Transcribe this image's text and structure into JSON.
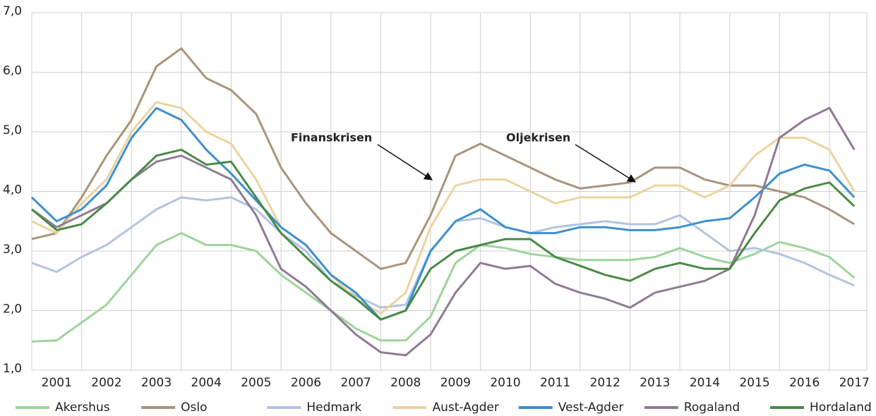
{
  "chart_data": {
    "type": "line",
    "x": [
      2001,
      2001.5,
      2002,
      2002.5,
      2003,
      2003.5,
      2004,
      2004.5,
      2005,
      2005.5,
      2006,
      2006.5,
      2007,
      2007.5,
      2008,
      2008.5,
      2009,
      2009.5,
      2010,
      2010.5,
      2011,
      2011.5,
      2012,
      2012.5,
      2013,
      2013.5,
      2014,
      2014.5,
      2015,
      2015.5,
      2016,
      2016.5,
      2017,
      2017.5
    ],
    "xlim": [
      2001,
      2017.75
    ],
    "xticks": [
      {
        "value": 2001.5,
        "label": "2001"
      },
      {
        "value": 2002.5,
        "label": "2002"
      },
      {
        "value": 2003.5,
        "label": "2003"
      },
      {
        "value": 2004.5,
        "label": "2004"
      },
      {
        "value": 2005.5,
        "label": "2005"
      },
      {
        "value": 2006.5,
        "label": "2006"
      },
      {
        "value": 2007.5,
        "label": "2007"
      },
      {
        "value": 2008.5,
        "label": "2008"
      },
      {
        "value": 2009.5,
        "label": "2009"
      },
      {
        "value": 2010.5,
        "label": "2010"
      },
      {
        "value": 2011.5,
        "label": "2011"
      },
      {
        "value": 2012.5,
        "label": "2012"
      },
      {
        "value": 2013.5,
        "label": "2013"
      },
      {
        "value": 2014.5,
        "label": "2014"
      },
      {
        "value": 2015.5,
        "label": "2015"
      },
      {
        "value": 2016.5,
        "label": "2016"
      },
      {
        "value": 2017.5,
        "label": "2017"
      }
    ],
    "ylim": [
      1,
      7
    ],
    "yticks": [
      {
        "value": 1,
        "label": "1,0"
      },
      {
        "value": 2,
        "label": "2,0"
      },
      {
        "value": 3,
        "label": "3,0"
      },
      {
        "value": 4,
        "label": "4,0"
      },
      {
        "value": 5,
        "label": "5,0"
      },
      {
        "value": 6,
        "label": "6,0"
      },
      {
        "value": 7,
        "label": "7,0"
      }
    ],
    "grid": true,
    "legend": "bottom",
    "annotations": [
      "Finanskrisen",
      "Oljekrisen"
    ],
    "series": [
      {
        "name": "Akershus",
        "color": "#9dd49b",
        "values": [
          1.48,
          1.5,
          1.8,
          2.1,
          2.6,
          3.1,
          3.3,
          3.1,
          3.1,
          3.0,
          2.6,
          2.3,
          2.0,
          1.7,
          1.5,
          1.5,
          1.9,
          2.8,
          3.1,
          3.05,
          2.95,
          2.9,
          2.85,
          2.85,
          2.85,
          2.9,
          3.05,
          2.9,
          2.8,
          2.95,
          3.15,
          3.05,
          2.9,
          2.55
        ]
      },
      {
        "name": "Oslo",
        "color": "#a8957a",
        "values": [
          3.2,
          3.3,
          3.9,
          4.6,
          5.2,
          6.1,
          6.4,
          5.9,
          5.7,
          5.3,
          4.4,
          3.8,
          3.3,
          3.0,
          2.7,
          2.8,
          3.6,
          4.6,
          4.8,
          4.6,
          4.4,
          4.2,
          4.05,
          4.1,
          4.15,
          4.4,
          4.4,
          4.2,
          4.1,
          4.1,
          4.0,
          3.9,
          3.7,
          3.45
        ]
      },
      {
        "name": "Hedmark",
        "color": "#b4c3e0",
        "values": [
          2.8,
          2.65,
          2.9,
          3.1,
          3.4,
          3.7,
          3.9,
          3.85,
          3.9,
          3.7,
          3.3,
          3.0,
          2.5,
          2.25,
          2.05,
          2.1,
          3.0,
          3.5,
          3.55,
          3.4,
          3.3,
          3.4,
          3.45,
          3.5,
          3.45,
          3.45,
          3.6,
          3.3,
          3.0,
          3.05,
          2.95,
          2.8,
          2.6,
          2.42
        ]
      },
      {
        "name": "Aust-Agder",
        "color": "#ecd3a0",
        "values": [
          3.5,
          3.3,
          3.8,
          4.2,
          5.0,
          5.5,
          5.4,
          5.0,
          4.8,
          4.2,
          3.4,
          3.1,
          2.6,
          2.2,
          1.95,
          2.3,
          3.4,
          4.1,
          4.2,
          4.2,
          4.0,
          3.8,
          3.9,
          3.9,
          3.9,
          4.1,
          4.1,
          3.9,
          4.1,
          4.6,
          4.9,
          4.9,
          4.7,
          4.0
        ]
      },
      {
        "name": "Vest-Agder",
        "color": "#3d8fcf",
        "values": [
          3.9,
          3.5,
          3.7,
          4.1,
          4.9,
          5.4,
          5.2,
          4.7,
          4.3,
          3.85,
          3.4,
          3.1,
          2.6,
          2.3,
          1.85,
          2.0,
          3.0,
          3.5,
          3.7,
          3.4,
          3.3,
          3.3,
          3.4,
          3.4,
          3.35,
          3.35,
          3.4,
          3.5,
          3.55,
          3.9,
          4.3,
          4.45,
          4.35,
          3.9
        ]
      },
      {
        "name": "Rogaland",
        "color": "#8e7b93",
        "values": [
          3.7,
          3.4,
          3.6,
          3.8,
          4.2,
          4.5,
          4.6,
          4.4,
          4.2,
          3.6,
          2.7,
          2.4,
          2.0,
          1.6,
          1.3,
          1.25,
          1.6,
          2.3,
          2.8,
          2.7,
          2.75,
          2.45,
          2.3,
          2.2,
          2.05,
          2.3,
          2.4,
          2.5,
          2.7,
          3.6,
          4.9,
          5.2,
          5.4,
          4.7
        ]
      },
      {
        "name": "Hordaland",
        "color": "#4a8a46",
        "values": [
          3.7,
          3.35,
          3.45,
          3.8,
          4.2,
          4.6,
          4.7,
          4.45,
          4.5,
          3.9,
          3.3,
          2.9,
          2.5,
          2.2,
          1.85,
          2.0,
          2.7,
          3.0,
          3.1,
          3.2,
          3.2,
          2.9,
          2.75,
          2.6,
          2.5,
          2.7,
          2.8,
          2.7,
          2.7,
          3.3,
          3.85,
          4.05,
          4.15,
          3.75
        ]
      }
    ]
  }
}
